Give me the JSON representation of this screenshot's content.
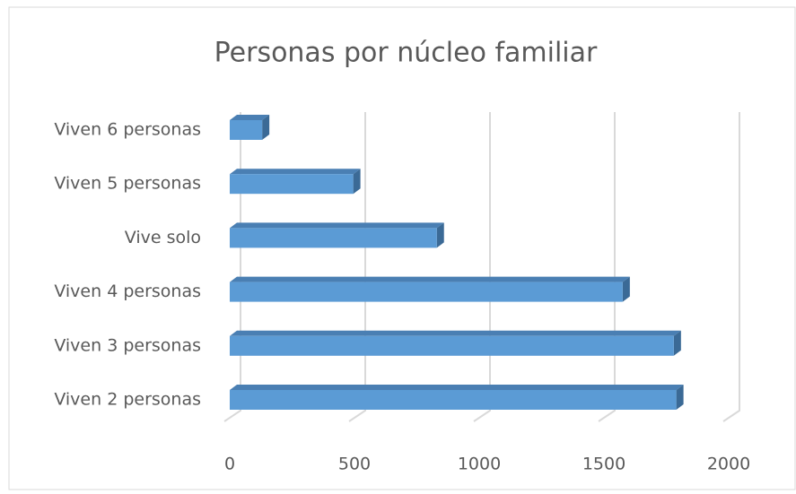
{
  "chart_data": {
    "type": "bar",
    "orientation": "horizontal",
    "title": "Personas por núcleo familiar",
    "categories": [
      "Viven 2 personas",
      "Viven 3 personas",
      "Viven 4 personas",
      "Vive solo",
      "Viven 5 personas",
      "Viven 6 personas"
    ],
    "values": [
      1790,
      1780,
      1575,
      830,
      495,
      130
    ],
    "color": "#5b9bd5",
    "xlim": [
      0,
      2000
    ],
    "xticks": [
      0,
      500,
      1000,
      1500,
      2000
    ],
    "grid": true
  }
}
